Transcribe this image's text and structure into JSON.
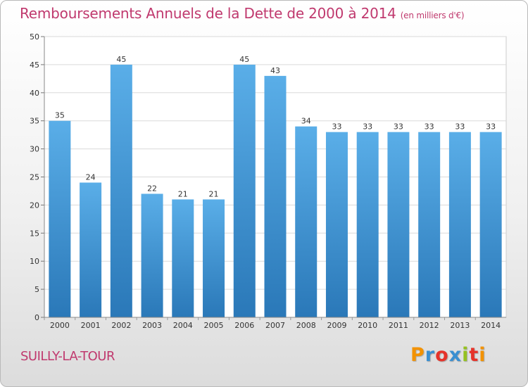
{
  "header": {
    "title": "Remboursements Annuels de la Dette de 2000 à 2014",
    "subtitle": "(en milliers d'€)"
  },
  "footer": {
    "commune": "SUILLY-LA-TOUR",
    "logo": "Proxiti",
    "logo_colors": [
      "#f39200",
      "#3a8fd1",
      "#e6332a",
      "#3a8fd1",
      "#95c11f",
      "#e6332a",
      "#f39200"
    ]
  },
  "colors": {
    "bar_light": "#5aaee8",
    "bar_dark": "#2a78b8",
    "text_accent": "#c0396e"
  },
  "chart_data": {
    "type": "bar",
    "categories": [
      "2000",
      "2001",
      "2002",
      "2003",
      "2004",
      "2005",
      "2006",
      "2007",
      "2008",
      "2009",
      "2010",
      "2011",
      "2012",
      "2013",
      "2014"
    ],
    "values": [
      35,
      24,
      45,
      22,
      21,
      21,
      45,
      43,
      34,
      33,
      33,
      33,
      33,
      33,
      33
    ],
    "ylim": [
      0,
      50
    ],
    "yticks": [
      0,
      5,
      10,
      15,
      20,
      25,
      30,
      35,
      40,
      45,
      50
    ],
    "grid": true
  }
}
